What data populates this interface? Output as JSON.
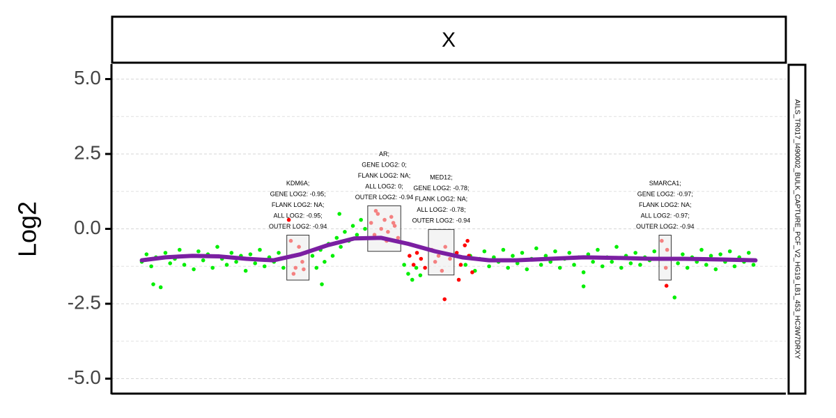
{
  "chart_data": {
    "type": "scatter",
    "title": "X",
    "ylabel": "Log2",
    "strip_label": "AILS_TR017_I490002_BULK_CAPTURE_PCF_V2_HG19_LB1_453_HC3W7DRXY",
    "xlim": [
      0,
      100
    ],
    "ylim": [
      -5.5,
      5.5
    ],
    "yticks": [
      {
        "value": 5,
        "label": "5.0"
      },
      {
        "value": 2.5,
        "label": "2.5"
      },
      {
        "value": 0,
        "label": "0.0"
      },
      {
        "value": -2.5,
        "label": "-2.5"
      },
      {
        "value": -5,
        "label": "-5.0"
      }
    ],
    "minor_yticks": [
      3.75,
      1.25,
      -1.25,
      -3.75
    ],
    "grid": true,
    "series": [
      {
        "color": "#00ee00",
        "x": [
          4.5,
          5.2,
          5.9,
          6.2,
          6.6,
          7.3,
          8.0,
          8.7,
          9.4,
          10.1,
          10.8,
          11.5,
          12.2,
          12.9,
          13.6,
          14.3,
          15.0,
          15.7,
          16.4,
          17.1,
          17.8,
          18.5,
          19.2,
          19.9,
          20.6,
          21.3,
          22.0,
          22.7,
          23.4,
          24.1,
          24.8,
          25.5,
          29.8,
          30.4,
          31.0,
          31.2,
          31.6,
          32.2,
          32.8,
          33.4,
          33.8,
          34.0,
          34.6,
          35.2,
          35.8,
          36.4,
          37.0,
          37.6,
          43.4,
          44.0,
          44.6,
          45.2,
          45.8,
          52.5,
          53.2,
          53.9,
          54.6,
          55.3,
          56.0,
          56.7,
          57.4,
          58.1,
          58.8,
          59.5,
          60.2,
          60.9,
          61.6,
          62.3,
          63.0,
          63.7,
          64.4,
          65.1,
          65.8,
          66.5,
          67.2,
          67.9,
          68.6,
          69.3,
          70.0,
          70.0,
          70.7,
          71.4,
          72.1,
          72.8,
          73.5,
          74.2,
          74.9,
          75.6,
          76.3,
          77.0,
          77.7,
          78.4,
          79.1,
          79.8,
          80.5,
          83.5,
          84.0,
          84.7,
          85.4,
          86.1,
          86.8,
          87.5,
          88.2,
          88.9,
          89.6,
          90.3,
          91.0,
          91.7,
          92.4,
          93.1,
          93.8,
          94.5,
          95.2
        ],
        "values": [
          -1.1,
          -0.85,
          -1.25,
          -1.85,
          -0.95,
          -1.95,
          -0.8,
          -1.15,
          -1.0,
          -0.7,
          -1.2,
          -0.9,
          -1.35,
          -0.75,
          -1.05,
          -0.85,
          -1.3,
          -0.6,
          -1.0,
          -1.2,
          -0.8,
          -1.1,
          -0.9,
          -1.4,
          -0.85,
          -1.15,
          -0.7,
          -1.25,
          -0.95,
          -1.1,
          -0.8,
          -1.3,
          -0.9,
          -1.3,
          -0.7,
          -1.85,
          -1.1,
          -0.5,
          -0.9,
          -0.3,
          0.5,
          -0.6,
          -0.1,
          -0.4,
          0.1,
          -0.2,
          0.3,
          0.0,
          -1.2,
          -1.5,
          -1.7,
          -1.3,
          -1.55,
          -1.2,
          -0.9,
          -1.4,
          -1.0,
          -0.75,
          -1.25,
          -0.95,
          -1.1,
          -0.7,
          -1.3,
          -0.9,
          -1.15,
          -0.8,
          -1.35,
          -1.0,
          -0.65,
          -1.2,
          -0.9,
          -1.1,
          -0.75,
          -1.3,
          -1.0,
          -0.8,
          -1.2,
          -0.95,
          -1.45,
          -1.92,
          -0.85,
          -1.1,
          -0.7,
          -1.25,
          -0.95,
          -1.1,
          -0.6,
          -1.3,
          -0.9,
          -1.15,
          -0.8,
          -1.2,
          -0.95,
          -1.05,
          -0.75,
          -2.29,
          -1.15,
          -0.85,
          -1.3,
          -0.95,
          -1.1,
          -0.7,
          -1.2,
          -0.9,
          -1.35,
          -0.85,
          -1.1,
          -0.75,
          -1.25,
          -0.95,
          -1.1,
          -0.8,
          -1.2
        ]
      },
      {
        "color": "#ff0000",
        "x": [
          26.3,
          26.6,
          26.8,
          27.0,
          27.3,
          27.8,
          28.3,
          28.5,
          28.8,
          38.5,
          39.0,
          39.2,
          39.5,
          40.0,
          40.5,
          40.8,
          41.0,
          41.5,
          41.8,
          42.0,
          42.5,
          44.2,
          44.8,
          45.3,
          45.9,
          46.5,
          47.5,
          48.0,
          48.5,
          49.0,
          49.4,
          49.5,
          50.2,
          51.2,
          51.5,
          51.8,
          52.4,
          52.8,
          53.0,
          53.5,
          81.6,
          81.9,
          82.2,
          82.3,
          82.4
        ],
        "values": [
          0.3,
          -0.4,
          -0.9,
          -1.5,
          -1.3,
          -0.6,
          -1.1,
          -1.35,
          -0.8,
          0.2,
          -0.2,
          0.6,
          0.5,
          0.0,
          0.3,
          -0.4,
          -0.1,
          0.4,
          0.2,
          0.1,
          -0.3,
          -0.9,
          -1.2,
          -0.8,
          -1.0,
          -1.3,
          -0.7,
          -1.1,
          -0.9,
          -1.4,
          -2.35,
          -0.6,
          -1.0,
          -0.8,
          -1.7,
          -1.2,
          -0.55,
          -0.4,
          -0.9,
          -1.45,
          -0.4,
          -1.0,
          -1.3,
          -1.9,
          -0.7
        ]
      }
    ],
    "trend": {
      "color": "#7b1fa2",
      "x": [
        4.5,
        8,
        12,
        16,
        20,
        24,
        28,
        32,
        36,
        40,
        44,
        48,
        52,
        56,
        60,
        65,
        70,
        75,
        80,
        85,
        90,
        95.5
      ],
      "values": [
        -1.05,
        -0.95,
        -0.9,
        -0.92,
        -1.0,
        -1.05,
        -0.85,
        -0.55,
        -0.32,
        -0.3,
        -0.5,
        -0.75,
        -0.95,
        -1.05,
        -1.05,
        -1.0,
        -0.95,
        -0.97,
        -1.0,
        -1.0,
        -1.02,
        -1.05
      ]
    },
    "genes": [
      {
        "x0": 26,
        "x1": 29.3,
        "y0": -1.71,
        "y1": -0.21,
        "labels": [
          "KDM6A;",
          "GENE LOG2: -0.95;",
          "FLANK LOG2: NA;",
          "ALL LOG2: -0.95;",
          "OUTER LOG2: -0.94"
        ]
      },
      {
        "x0": 38,
        "x1": 42.9,
        "y0": -0.75,
        "y1": 0.77,
        "labels": [
          "AR;",
          "GENE LOG2: 0;",
          "FLANK LOG2: NA;",
          "ALL LOG2: 0;",
          "OUTER LOG2: -0.94"
        ]
      },
      {
        "x0": 47,
        "x1": 50.8,
        "y0": -1.54,
        "y1": -0.02,
        "labels": [
          "MED12;",
          "GENE LOG2: -0.78;",
          "FLANK LOG2: NA;",
          "ALL LOG2: -0.78;",
          "OUTER LOG2: -0.94"
        ]
      },
      {
        "x0": 81.2,
        "x1": 83,
        "y0": -1.71,
        "y1": -0.21,
        "labels": [
          "SMARCA1;",
          "GENE LOG2: -0.97;",
          "FLANK LOG2: NA;",
          "ALL LOG2: -0.97;",
          "OUTER LOG2: -0.94"
        ]
      }
    ]
  }
}
